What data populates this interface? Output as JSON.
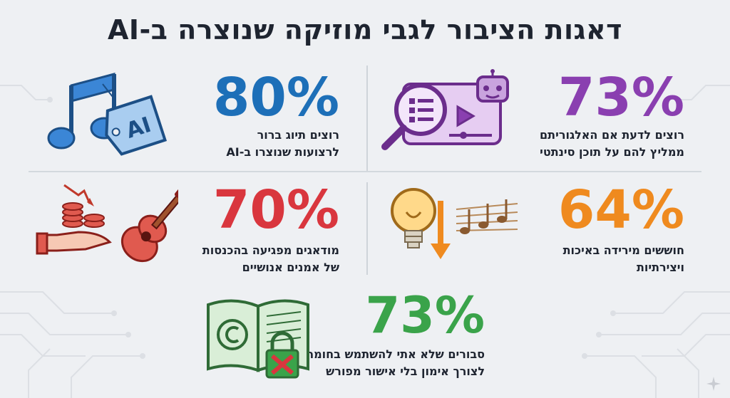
{
  "title": "דאגות הציבור לגבי מוזיקה שנוצרה ב-AI",
  "colors": {
    "purple": "#8a3fb0",
    "blue": "#1d6fb8",
    "red": "#d9363e",
    "orange": "#ef8a1f",
    "green": "#3aa34a"
  },
  "stats": {
    "top_right": {
      "value": "73%",
      "line1": "רוצים לדעת אם האלגוריתם",
      "line2": "ממליץ להם על תוכן סינתטי",
      "icon": "magnifier-robot-video-icon"
    },
    "top_left": {
      "value": "80%",
      "line1": "רוצים תיוג ברור",
      "line2": "לרצועות שנוצרו ב-AI",
      "icon": "music-note-ai-tag-icon"
    },
    "mid_right": {
      "value": "64%",
      "line1": "חוששים מירידה באיכות",
      "line2": "ויצירתיות",
      "icon": "lightbulb-down-arrow-notes-icon"
    },
    "mid_left": {
      "value": "70%",
      "line1": "מודאגים מפגיעה בהכנסות",
      "line2": "של אמנים אנושיים",
      "icon": "hand-coins-guitar-icon"
    },
    "bottom": {
      "value": "73%",
      "line1": "סבורים שלא אתי להשתמש בחומר",
      "line2": "לצורך אימון בלי אישור מפורש",
      "icon": "copyright-book-lock-icon"
    }
  },
  "tag_text": "AI"
}
